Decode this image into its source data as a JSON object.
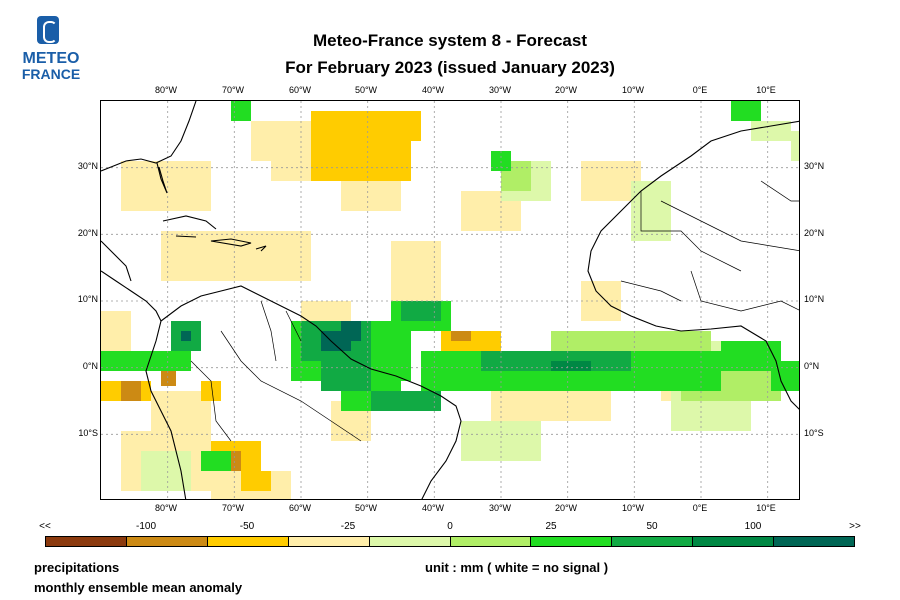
{
  "logo": {
    "line1": "METEO",
    "line2": "FRANCE"
  },
  "title": {
    "line1": "Meteo-France system 8  -  Forecast",
    "line2": "For February 2023      (issued January 2023)"
  },
  "map": {
    "lon_labels": [
      "80°W",
      "70°W",
      "60°W",
      "50°W",
      "40°W",
      "30°W",
      "20°W",
      "10°W",
      "0°E",
      "10°E"
    ],
    "lat_labels_left": [
      "30°N",
      "20°N",
      "10°N",
      "0°N",
      "10°S"
    ],
    "lat_labels_right": [
      "30°N",
      "20°N",
      "10°N",
      "0°N",
      "10°S"
    ],
    "extent": {
      "lon_min": -90,
      "lon_max": 15,
      "lat_min": -20,
      "lat_max": 40
    }
  },
  "colorbar": {
    "labels": [
      "<<",
      "-100",
      "-50",
      "-25",
      "0",
      "25",
      "50",
      "100",
      ">>"
    ],
    "colors": [
      "#8b3a0e",
      "#cc8a14",
      "#ffcc00",
      "#ffeeaa",
      "#ddf8aa",
      "#b0ee66",
      "#22dd22",
      "#11aa44",
      "#008844",
      "#006655"
    ]
  },
  "footer": {
    "variable": "precipitations",
    "description": "monthly ensemble mean anomaly",
    "unit": "unit : mm  ( white = no signal )"
  }
}
